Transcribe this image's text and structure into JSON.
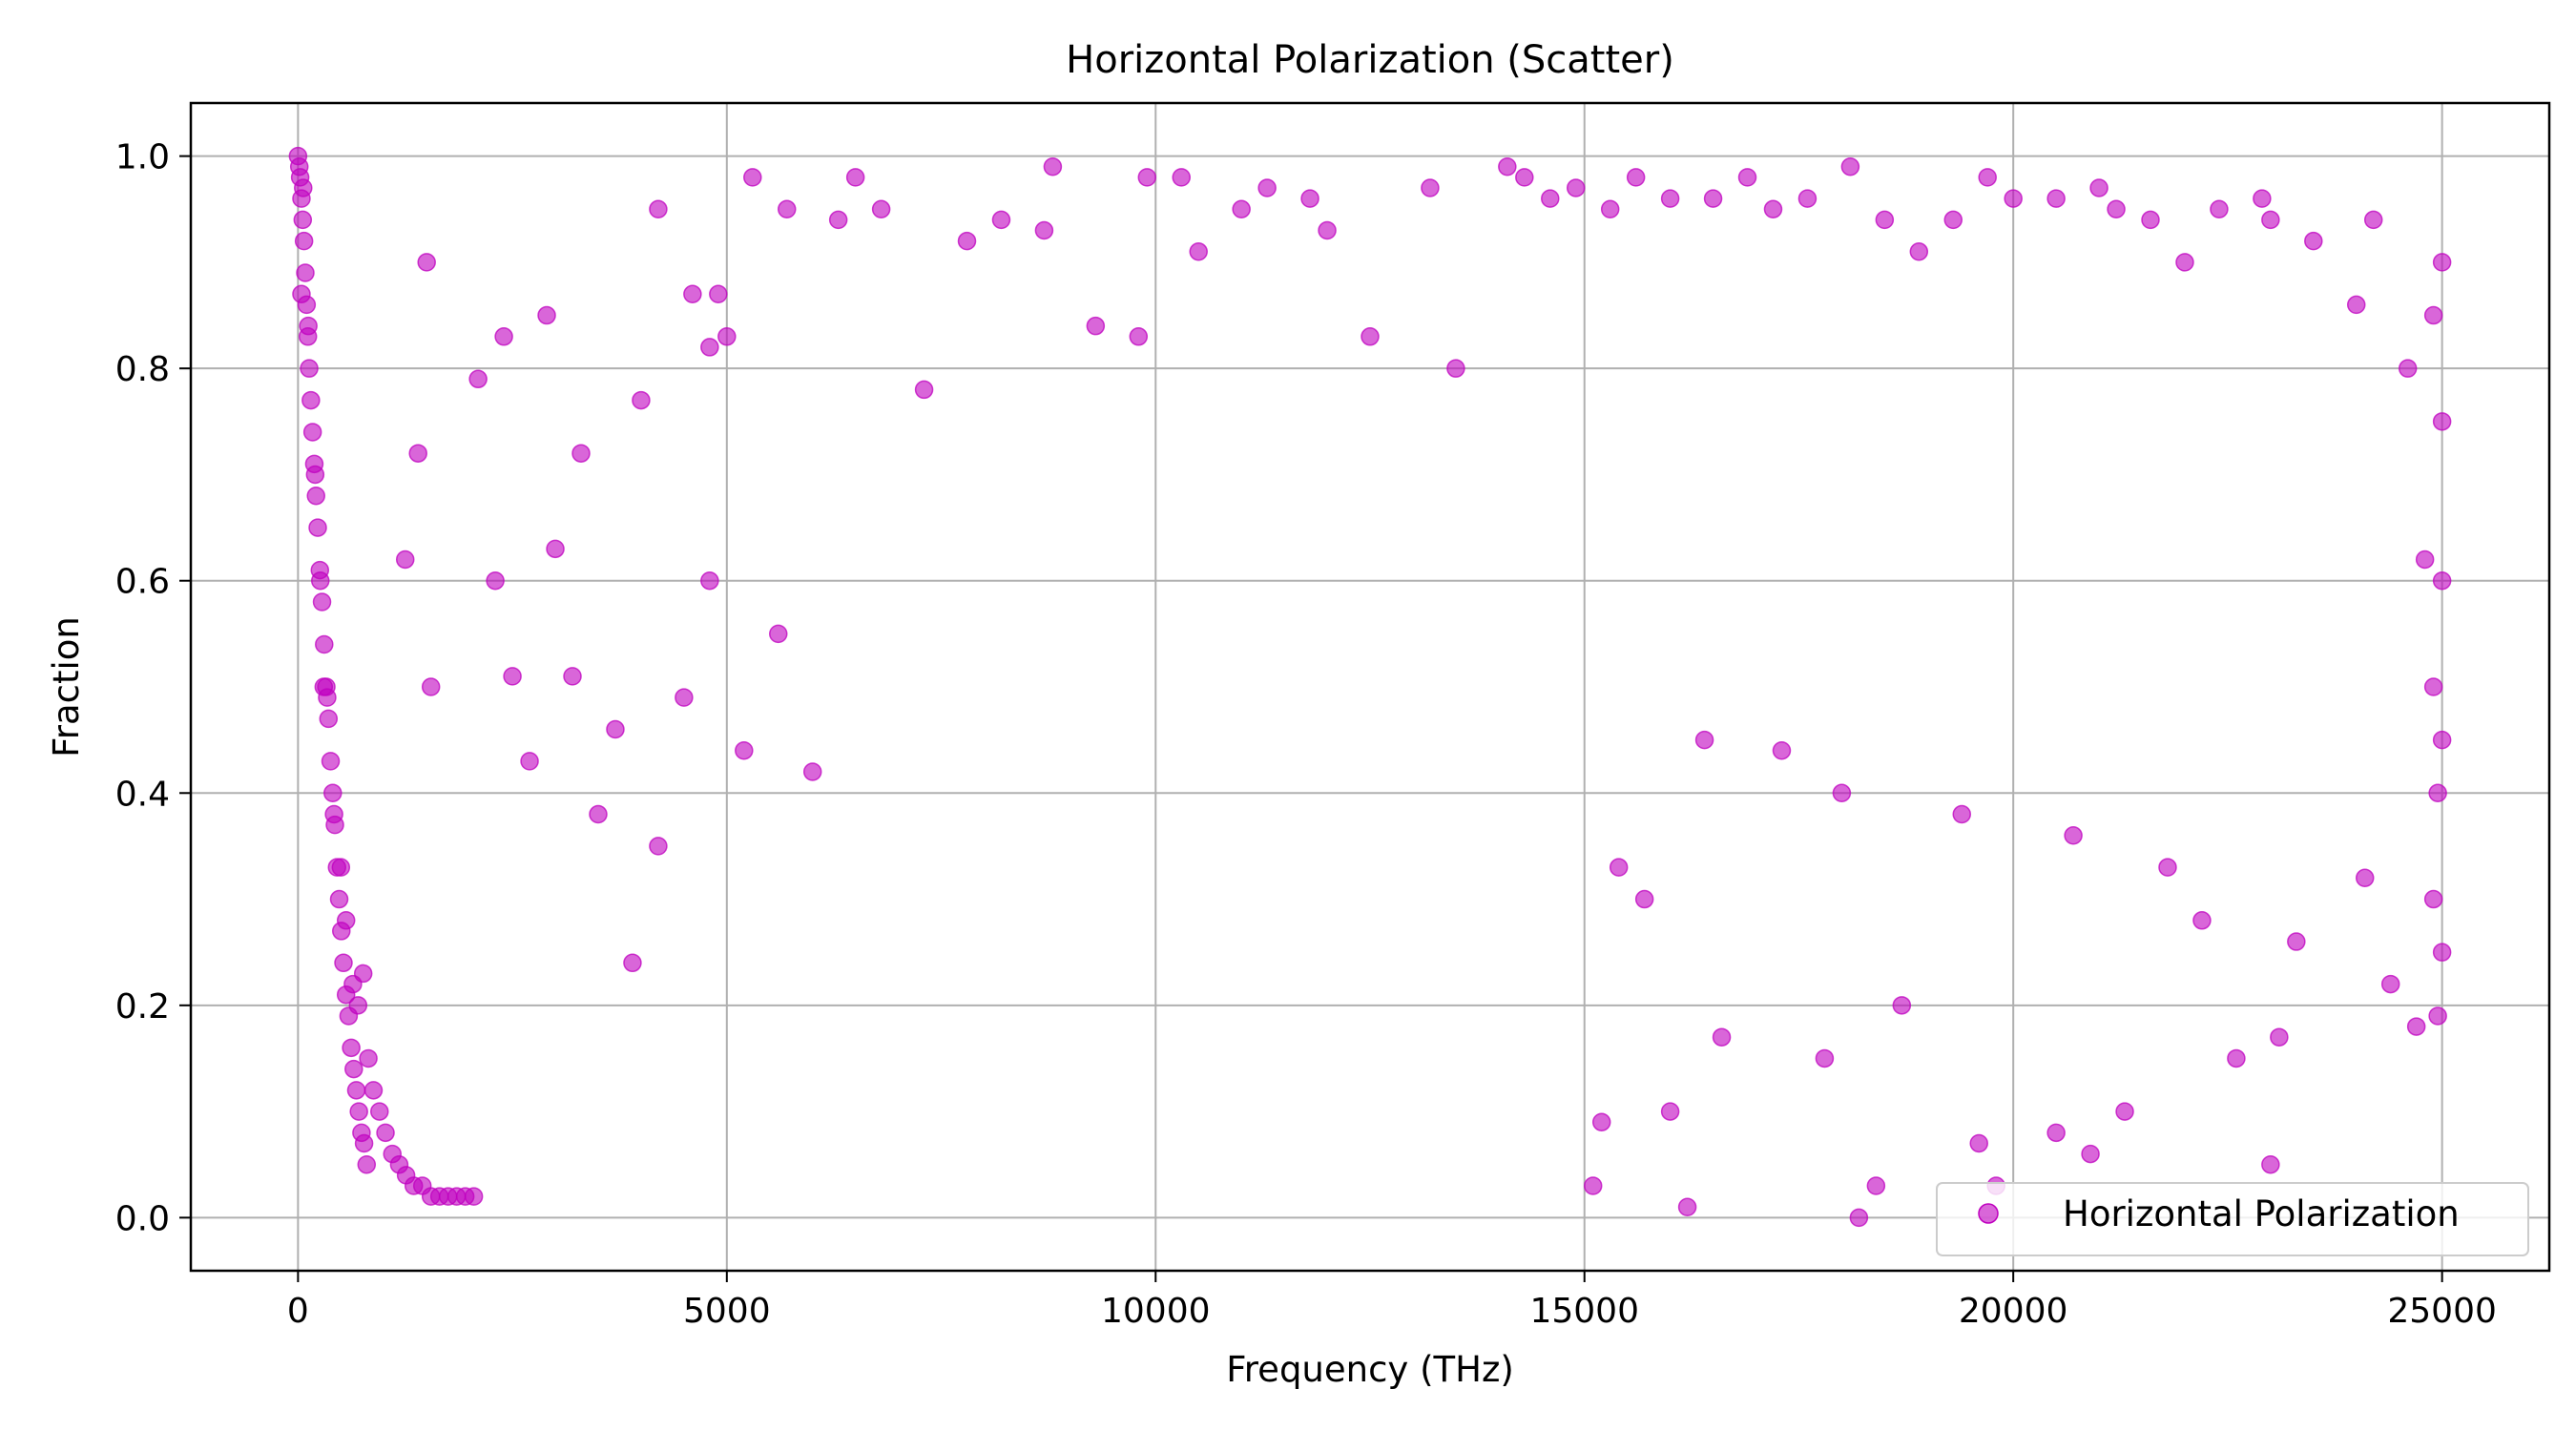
{
  "chart_data": {
    "type": "scatter",
    "title": "Horizontal Polarization (Scatter)",
    "xlabel": "Frequency (THz)",
    "ylabel": "Fraction",
    "xlim": [
      -1250,
      26250
    ],
    "ylim": [
      -0.05,
      1.05
    ],
    "x_ticks": [
      0,
      5000,
      10000,
      15000,
      20000,
      25000
    ],
    "x_tick_labels": [
      "0",
      "5000",
      "10000",
      "15000",
      "20000",
      "25000"
    ],
    "y_ticks": [
      0.0,
      0.2,
      0.4,
      0.6,
      0.8,
      1.0
    ],
    "y_tick_labels": [
      "0.0",
      "0.2",
      "0.4",
      "0.6",
      "0.8",
      "1.0"
    ],
    "grid": true,
    "legend_position": "lower-right",
    "series": [
      {
        "name": "Horizontal Polarization",
        "color": "#bf00bf",
        "points": [
          [
            0,
            1.0
          ],
          [
            15,
            0.99
          ],
          [
            25,
            0.98
          ],
          [
            40,
            0.96
          ],
          [
            55,
            0.94
          ],
          [
            70,
            0.92
          ],
          [
            85,
            0.89
          ],
          [
            100,
            0.86
          ],
          [
            115,
            0.83
          ],
          [
            130,
            0.8
          ],
          [
            150,
            0.77
          ],
          [
            170,
            0.74
          ],
          [
            190,
            0.71
          ],
          [
            210,
            0.68
          ],
          [
            230,
            0.65
          ],
          [
            255,
            0.61
          ],
          [
            280,
            0.58
          ],
          [
            305,
            0.54
          ],
          [
            330,
            0.5
          ],
          [
            355,
            0.47
          ],
          [
            380,
            0.43
          ],
          [
            405,
            0.4
          ],
          [
            430,
            0.37
          ],
          [
            455,
            0.33
          ],
          [
            480,
            0.3
          ],
          [
            505,
            0.27
          ],
          [
            530,
            0.24
          ],
          [
            560,
            0.21
          ],
          [
            590,
            0.19
          ],
          [
            620,
            0.16
          ],
          [
            650,
            0.14
          ],
          [
            680,
            0.12
          ],
          [
            710,
            0.1
          ],
          [
            740,
            0.08
          ],
          [
            770,
            0.07
          ],
          [
            800,
            0.05
          ],
          [
            40,
            0.87
          ],
          [
            60,
            0.97
          ],
          [
            120,
            0.84
          ],
          [
            200,
            0.7
          ],
          [
            260,
            0.6
          ],
          [
            340,
            0.49
          ],
          [
            420,
            0.38
          ],
          [
            300,
            0.5
          ],
          [
            500,
            0.33
          ],
          [
            560,
            0.28
          ],
          [
            640,
            0.22
          ],
          [
            700,
            0.2
          ],
          [
            760,
            0.23
          ],
          [
            820,
            0.15
          ],
          [
            880,
            0.12
          ],
          [
            950,
            0.1
          ],
          [
            1020,
            0.08
          ],
          [
            1100,
            0.06
          ],
          [
            1180,
            0.05
          ],
          [
            1260,
            0.04
          ],
          [
            1350,
            0.03
          ],
          [
            1450,
            0.03
          ],
          [
            1550,
            0.02
          ],
          [
            1650,
            0.02
          ],
          [
            1750,
            0.02
          ],
          [
            1850,
            0.02
          ],
          [
            1950,
            0.02
          ],
          [
            2050,
            0.02
          ],
          [
            1500,
            0.9
          ],
          [
            1400,
            0.72
          ],
          [
            1250,
            0.62
          ],
          [
            1550,
            0.5
          ],
          [
            2100,
            0.79
          ],
          [
            2300,
            0.6
          ],
          [
            2400,
            0.83
          ],
          [
            2900,
            0.85
          ],
          [
            3300,
            0.72
          ],
          [
            3000,
            0.63
          ],
          [
            3700,
            0.46
          ],
          [
            4200,
            0.95
          ],
          [
            4000,
            0.77
          ],
          [
            4600,
            0.87
          ],
          [
            4800,
            0.82
          ],
          [
            4900,
            0.87
          ],
          [
            5000,
            0.83
          ],
          [
            5300,
            0.98
          ],
          [
            5700,
            0.95
          ],
          [
            3200,
            0.51
          ],
          [
            2500,
            0.51
          ],
          [
            2700,
            0.43
          ],
          [
            3500,
            0.38
          ],
          [
            3900,
            0.24
          ],
          [
            4200,
            0.35
          ],
          [
            4500,
            0.49
          ],
          [
            4800,
            0.6
          ],
          [
            5200,
            0.44
          ],
          [
            5600,
            0.55
          ],
          [
            6000,
            0.42
          ],
          [
            6300,
            0.94
          ],
          [
            6500,
            0.98
          ],
          [
            6800,
            0.95
          ],
          [
            7300,
            0.78
          ],
          [
            7800,
            0.92
          ],
          [
            8200,
            0.94
          ],
          [
            8700,
            0.93
          ],
          [
            8800,
            0.99
          ],
          [
            9300,
            0.84
          ],
          [
            9800,
            0.83
          ],
          [
            9900,
            0.98
          ],
          [
            10300,
            0.98
          ],
          [
            10500,
            0.91
          ],
          [
            11000,
            0.95
          ],
          [
            11300,
            0.97
          ],
          [
            11800,
            0.96
          ],
          [
            12000,
            0.93
          ],
          [
            12500,
            0.83
          ],
          [
            13200,
            0.97
          ],
          [
            13500,
            0.8
          ],
          [
            14100,
            0.99
          ],
          [
            14300,
            0.98
          ],
          [
            14600,
            0.96
          ],
          [
            14900,
            0.97
          ],
          [
            15300,
            0.95
          ],
          [
            15600,
            0.98
          ],
          [
            16000,
            0.96
          ],
          [
            16500,
            0.96
          ],
          [
            16900,
            0.98
          ],
          [
            17200,
            0.95
          ],
          [
            17600,
            0.96
          ],
          [
            18100,
            0.99
          ],
          [
            18500,
            0.94
          ],
          [
            18900,
            0.91
          ],
          [
            19300,
            0.94
          ],
          [
            19700,
            0.98
          ],
          [
            20000,
            0.96
          ],
          [
            20500,
            0.96
          ],
          [
            21000,
            0.97
          ],
          [
            21200,
            0.95
          ],
          [
            21600,
            0.94
          ],
          [
            22000,
            0.9
          ],
          [
            22400,
            0.95
          ],
          [
            22900,
            0.96
          ],
          [
            23000,
            0.94
          ],
          [
            23500,
            0.92
          ],
          [
            24000,
            0.86
          ],
          [
            24200,
            0.94
          ],
          [
            24600,
            0.8
          ],
          [
            25000,
            0.9
          ],
          [
            24900,
            0.85
          ],
          [
            25000,
            0.75
          ],
          [
            24800,
            0.62
          ],
          [
            25000,
            0.6
          ],
          [
            24900,
            0.5
          ],
          [
            25000,
            0.45
          ],
          [
            24950,
            0.4
          ],
          [
            24900,
            0.3
          ],
          [
            25000,
            0.25
          ],
          [
            24950,
            0.19
          ],
          [
            24700,
            0.18
          ],
          [
            23000,
            0.05
          ],
          [
            23100,
            0.17
          ],
          [
            20500,
            0.08
          ],
          [
            20900,
            0.06
          ],
          [
            19800,
            0.03
          ],
          [
            18400,
            0.03
          ],
          [
            18200,
            0.0
          ],
          [
            16200,
            0.01
          ],
          [
            16600,
            0.17
          ],
          [
            15100,
            0.03
          ],
          [
            15200,
            0.09
          ],
          [
            16000,
            0.1
          ],
          [
            17800,
            0.15
          ],
          [
            18700,
            0.2
          ],
          [
            19600,
            0.07
          ],
          [
            21300,
            0.1
          ],
          [
            22600,
            0.15
          ],
          [
            23300,
            0.26
          ],
          [
            24100,
            0.32
          ],
          [
            24400,
            0.22
          ],
          [
            22200,
            0.28
          ],
          [
            21800,
            0.33
          ],
          [
            20700,
            0.36
          ],
          [
            19400,
            0.38
          ],
          [
            18000,
            0.4
          ],
          [
            17300,
            0.44
          ],
          [
            16400,
            0.45
          ],
          [
            15700,
            0.3
          ],
          [
            15400,
            0.33
          ]
        ]
      }
    ]
  }
}
